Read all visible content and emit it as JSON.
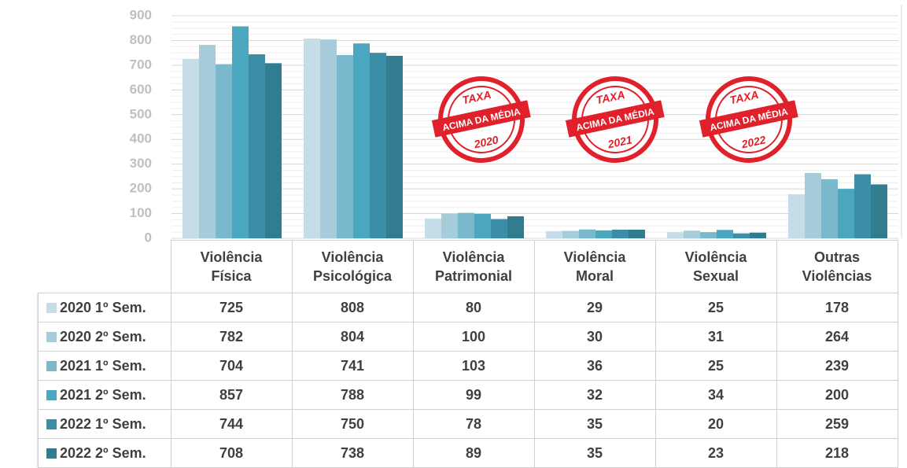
{
  "chart_data": {
    "type": "bar",
    "categories": [
      "Violência Física",
      "Violência Psicológica",
      "Violência Patrimonial",
      "Violência Moral",
      "Violência Sexual",
      "Outras Violências"
    ],
    "series": [
      {
        "name": "2020 1º Sem.",
        "color": "#c5dde6",
        "values": [
          725,
          808,
          80,
          29,
          25,
          178
        ]
      },
      {
        "name": "2020 2º Sem.",
        "color": "#a6cbd9",
        "values": [
          782,
          804,
          100,
          30,
          31,
          264
        ]
      },
      {
        "name": "2021 1º Sem.",
        "color": "#7ab8cc",
        "values": [
          704,
          741,
          103,
          36,
          25,
          239
        ]
      },
      {
        "name": "2021 2º Sem.",
        "color": "#4ba6c0",
        "values": [
          857,
          788,
          99,
          32,
          34,
          200
        ]
      },
      {
        "name": "2022 1º Sem.",
        "color": "#3b8ea6",
        "values": [
          744,
          750,
          78,
          35,
          20,
          259
        ]
      },
      {
        "name": "2022 2º Sem.",
        "color": "#327c8f",
        "values": [
          708,
          738,
          89,
          35,
          23,
          218
        ]
      }
    ],
    "ylim": [
      0,
      900
    ],
    "yticks": [
      0,
      100,
      200,
      300,
      400,
      500,
      600,
      700,
      800,
      900
    ],
    "grid": true,
    "annotations": [
      {
        "top": "TAXA",
        "band": "ACIMA DA MÉDIA",
        "year": "2020"
      },
      {
        "top": "TAXA",
        "band": "ACIMA DA MÉDIA",
        "year": "2021"
      },
      {
        "top": "TAXA",
        "band": "ACIMA DA MÉDIA",
        "year": "2022"
      }
    ]
  }
}
